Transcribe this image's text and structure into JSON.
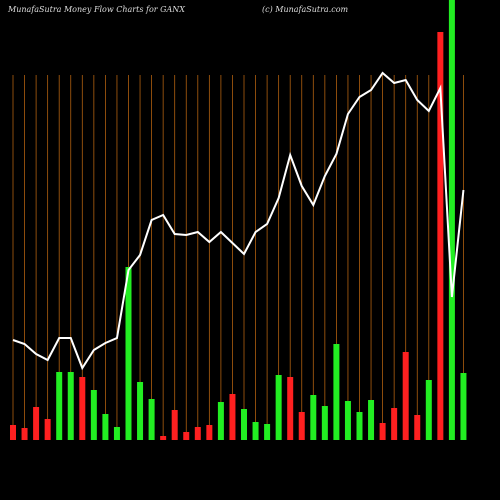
{
  "chart_data": {
    "type": "moneyflow",
    "title": "MunafaSutra  Money Flow  Charts for GANX",
    "credit": "(c) MunafaSutra.com",
    "bar_colors": [
      "#ff2020",
      "#ff2020",
      "#ff2020",
      "#ff2020",
      "#22ee22",
      "#22ee22",
      "#ff2020",
      "#22ee22",
      "#22ee22",
      "#22ee22",
      "#22ee22",
      "#22ee22",
      "#22ee22",
      "#ff2020",
      "#ff2020",
      "#ff2020",
      "#ff2020",
      "#ff2020",
      "#22ee22",
      "#ff2020",
      "#22ee22",
      "#22ee22",
      "#22ee22",
      "#22ee22",
      "#ff2020",
      "#ff2020",
      "#22ee22",
      "#22ee22",
      "#22ee22",
      "#22ee22",
      "#22ee22",
      "#22ee22",
      "#ff2020",
      "#ff2020",
      "#ff2020",
      "#ff2020",
      "#22ee22",
      "#ff2020",
      "#22ee22",
      "#22ee22"
    ],
    "flow": [
      15,
      12,
      33,
      21,
      68,
      68,
      63,
      50,
      26,
      13,
      173,
      58,
      41,
      4,
      30,
      8,
      13,
      15,
      38,
      46,
      31,
      18,
      16,
      65,
      63,
      28,
      45,
      34,
      96,
      39,
      28,
      40,
      17,
      32,
      88,
      25,
      60,
      408,
      450,
      67
    ],
    "line_color": "#ffffff",
    "price": [
      100,
      96,
      86,
      80,
      102,
      102,
      72,
      90,
      97,
      102,
      170,
      185,
      220,
      225,
      206,
      205,
      208,
      198,
      208,
      197,
      186,
      208,
      216,
      242,
      285,
      254,
      235,
      264,
      286,
      326,
      343,
      350,
      367,
      357,
      360,
      340,
      329,
      352,
      143,
      250
    ]
  }
}
